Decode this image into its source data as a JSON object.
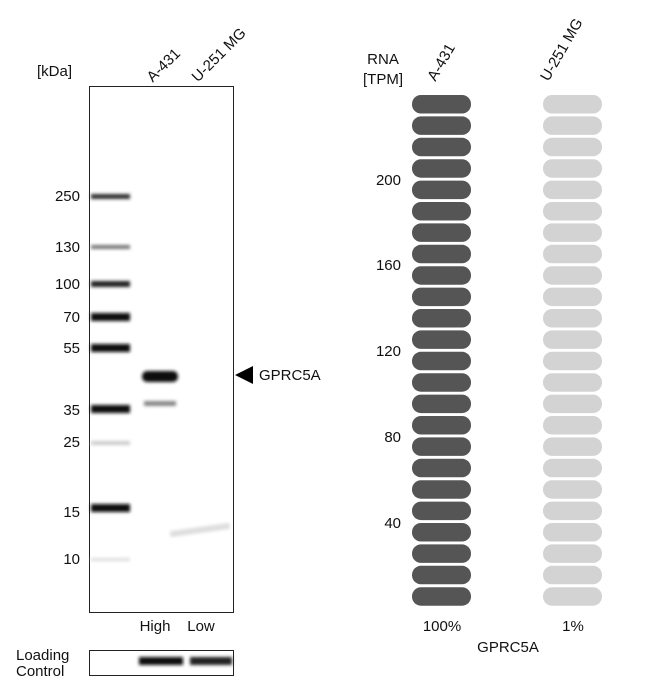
{
  "blot": {
    "unit": "[kDa]",
    "lanes": [
      "A-431",
      "U-251 MG"
    ],
    "markers": [
      "250",
      "130",
      "100",
      "70",
      "55",
      "35",
      "25",
      "15",
      "10"
    ],
    "target": "GPRC5A",
    "expression": [
      "High",
      "Low"
    ],
    "loading_control": [
      "Loading",
      "Control"
    ]
  },
  "rna": {
    "unit": [
      "RNA",
      "[TPM]"
    ],
    "lanes": [
      "A-431",
      "U-251 MG"
    ],
    "ticks": [
      "200",
      "160",
      "120",
      "80",
      "40"
    ],
    "percent": [
      "100%",
      "1%"
    ],
    "gene": "GPRC5A"
  }
}
